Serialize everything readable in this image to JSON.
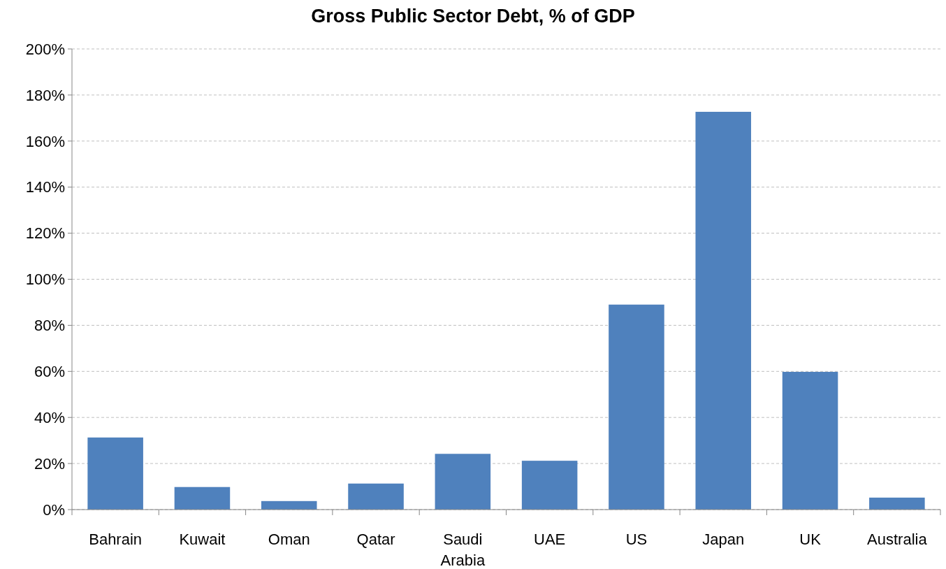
{
  "chart_data": {
    "type": "bar",
    "title": "Gross Public Sector Debt, % of GDP",
    "categories": [
      "Bahrain",
      "Kuwait",
      "Oman",
      "Qatar",
      "Saudi Arabia",
      "UAE",
      "US",
      "Japan",
      "UK",
      "Australia"
    ],
    "values": [
      31.3,
      9.8,
      3.7,
      11.3,
      24.2,
      21.2,
      89,
      172.7,
      59.8,
      5.2
    ],
    "color": "#4f81bd",
    "ylim": [
      0,
      200
    ],
    "yticks": [
      {
        "value": 0,
        "label": "0%"
      },
      {
        "value": 20,
        "label": "20%"
      },
      {
        "value": 40,
        "label": "40%"
      },
      {
        "value": 60,
        "label": "60%"
      },
      {
        "value": 80,
        "label": "80%"
      },
      {
        "value": 100,
        "label": "100%"
      },
      {
        "value": 120,
        "label": "120%"
      },
      {
        "value": 140,
        "label": "140%"
      },
      {
        "value": 160,
        "label": "160%"
      },
      {
        "value": 180,
        "label": "180%"
      },
      {
        "value": 200,
        "label": "200%"
      }
    ],
    "grid": "y"
  }
}
